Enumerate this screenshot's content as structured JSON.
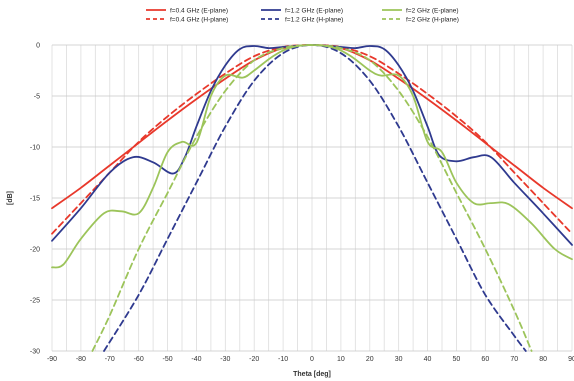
{
  "chart_data": {
    "type": "line",
    "title": "",
    "xlabel": "Theta [deg]",
    "ylabel": "[dB]",
    "xlim": [
      -90,
      90
    ],
    "ylim": [
      -30,
      0
    ],
    "x_ticks": [
      -90,
      -80,
      -70,
      -60,
      -50,
      -40,
      -30,
      -20,
      -10,
      0,
      10,
      20,
      30,
      40,
      50,
      60,
      70,
      80,
      90
    ],
    "y_ticks": [
      0,
      -5,
      -10,
      -15,
      -20,
      -25,
      -30
    ],
    "grid": true,
    "legend_position": "top",
    "series": [
      {
        "name": "f=0.4 GHz (E-plane)",
        "color": "#e8382b",
        "dash": "solid",
        "points": [
          [
            -90,
            -16.0
          ],
          [
            -80,
            -14.0
          ],
          [
            -70,
            -11.8
          ],
          [
            -60,
            -9.6
          ],
          [
            -50,
            -7.4
          ],
          [
            -40,
            -5.3
          ],
          [
            -30,
            -3.3
          ],
          [
            -20,
            -1.5
          ],
          [
            -10,
            -0.3
          ],
          [
            0,
            0
          ],
          [
            10,
            -0.3
          ],
          [
            20,
            -1.5
          ],
          [
            30,
            -3.3
          ],
          [
            40,
            -5.3
          ],
          [
            50,
            -7.4
          ],
          [
            60,
            -9.6
          ],
          [
            70,
            -11.8
          ],
          [
            80,
            -14.0
          ],
          [
            90,
            -16.0
          ]
        ]
      },
      {
        "name": "f=0.4 GHz (H-plane)",
        "color": "#e8382b",
        "dash": "dashed",
        "points": [
          [
            -90,
            -18.5
          ],
          [
            -80,
            -15.5
          ],
          [
            -70,
            -12.5
          ],
          [
            -60,
            -9.5
          ],
          [
            -50,
            -7.0
          ],
          [
            -40,
            -4.8
          ],
          [
            -30,
            -2.8
          ],
          [
            -20,
            -1.1
          ],
          [
            -10,
            -0.2
          ],
          [
            0,
            0
          ],
          [
            10,
            -0.2
          ],
          [
            20,
            -1.1
          ],
          [
            30,
            -2.8
          ],
          [
            40,
            -4.8
          ],
          [
            50,
            -7.0
          ],
          [
            60,
            -9.5
          ],
          [
            70,
            -12.5
          ],
          [
            80,
            -15.5
          ],
          [
            90,
            -18.5
          ]
        ]
      },
      {
        "name": "f=1.2 GHz (E-plane)",
        "color": "#2f3a8f",
        "dash": "solid",
        "points": [
          [
            -90,
            -19.2
          ],
          [
            -80,
            -16.0
          ],
          [
            -70,
            -12.5
          ],
          [
            -62,
            -11.0
          ],
          [
            -55,
            -11.5
          ],
          [
            -48,
            -12.6
          ],
          [
            -44,
            -11.0
          ],
          [
            -40,
            -8.0
          ],
          [
            -35,
            -4.5
          ],
          [
            -30,
            -2.0
          ],
          [
            -25,
            -0.4
          ],
          [
            -20,
            -0.1
          ],
          [
            -15,
            -0.3
          ],
          [
            -10,
            -0.2
          ],
          [
            0,
            0
          ],
          [
            10,
            -0.2
          ],
          [
            15,
            -0.3
          ],
          [
            20,
            -0.1
          ],
          [
            25,
            -0.4
          ],
          [
            30,
            -2.0
          ],
          [
            35,
            -4.5
          ],
          [
            40,
            -8.0
          ],
          [
            44,
            -10.8
          ],
          [
            50,
            -11.4
          ],
          [
            56,
            -11.0
          ],
          [
            62,
            -11.0
          ],
          [
            70,
            -13.5
          ],
          [
            80,
            -16.5
          ],
          [
            90,
            -19.6
          ]
        ]
      },
      {
        "name": "f=1.2 GHz (H-plane)",
        "color": "#2f3a8f",
        "dash": "dashed",
        "points": [
          [
            -72,
            -30.0
          ],
          [
            -60,
            -24.5
          ],
          [
            -50,
            -19.0
          ],
          [
            -40,
            -13.5
          ],
          [
            -30,
            -8.0
          ],
          [
            -20,
            -3.5
          ],
          [
            -10,
            -0.8
          ],
          [
            0,
            0
          ],
          [
            10,
            -0.8
          ],
          [
            20,
            -3.5
          ],
          [
            30,
            -8.0
          ],
          [
            40,
            -13.5
          ],
          [
            50,
            -19.0
          ],
          [
            60,
            -24.5
          ],
          [
            70,
            -28.5
          ],
          [
            74,
            -30.0
          ]
        ]
      },
      {
        "name": "f=2 GHz (E-plane)",
        "color": "#9cc45a",
        "dash": "solid",
        "points": [
          [
            -90,
            -21.8
          ],
          [
            -86,
            -21.5
          ],
          [
            -80,
            -19.0
          ],
          [
            -72,
            -16.5
          ],
          [
            -66,
            -16.3
          ],
          [
            -60,
            -16.5
          ],
          [
            -55,
            -14.0
          ],
          [
            -50,
            -10.5
          ],
          [
            -45,
            -9.5
          ],
          [
            -40,
            -9.6
          ],
          [
            -35,
            -5.0
          ],
          [
            -30,
            -3.0
          ],
          [
            -24,
            -3.2
          ],
          [
            -20,
            -2.5
          ],
          [
            -14,
            -1.2
          ],
          [
            -8,
            -0.3
          ],
          [
            0,
            0
          ],
          [
            8,
            -0.3
          ],
          [
            14,
            -1.2
          ],
          [
            20,
            -2.5
          ],
          [
            24,
            -3.0
          ],
          [
            30,
            -3.0
          ],
          [
            35,
            -5.0
          ],
          [
            40,
            -9.5
          ],
          [
            45,
            -10.5
          ],
          [
            50,
            -13.5
          ],
          [
            56,
            -15.5
          ],
          [
            62,
            -15.5
          ],
          [
            68,
            -15.6
          ],
          [
            76,
            -17.5
          ],
          [
            84,
            -20.0
          ],
          [
            90,
            -21.0
          ]
        ]
      },
      {
        "name": "f=2 GHz (H-plane)",
        "color": "#9cc45a",
        "dash": "dashed",
        "points": [
          [
            -76,
            -30.0
          ],
          [
            -70,
            -26.5
          ],
          [
            -60,
            -20.0
          ],
          [
            -50,
            -14.5
          ],
          [
            -40,
            -9.0
          ],
          [
            -30,
            -4.5
          ],
          [
            -20,
            -1.5
          ],
          [
            -10,
            -0.3
          ],
          [
            0,
            0
          ],
          [
            10,
            -0.3
          ],
          [
            20,
            -1.5
          ],
          [
            30,
            -4.5
          ],
          [
            40,
            -9.0
          ],
          [
            50,
            -14.5
          ],
          [
            60,
            -20.0
          ],
          [
            70,
            -26.0
          ],
          [
            76,
            -30.0
          ]
        ]
      }
    ]
  }
}
